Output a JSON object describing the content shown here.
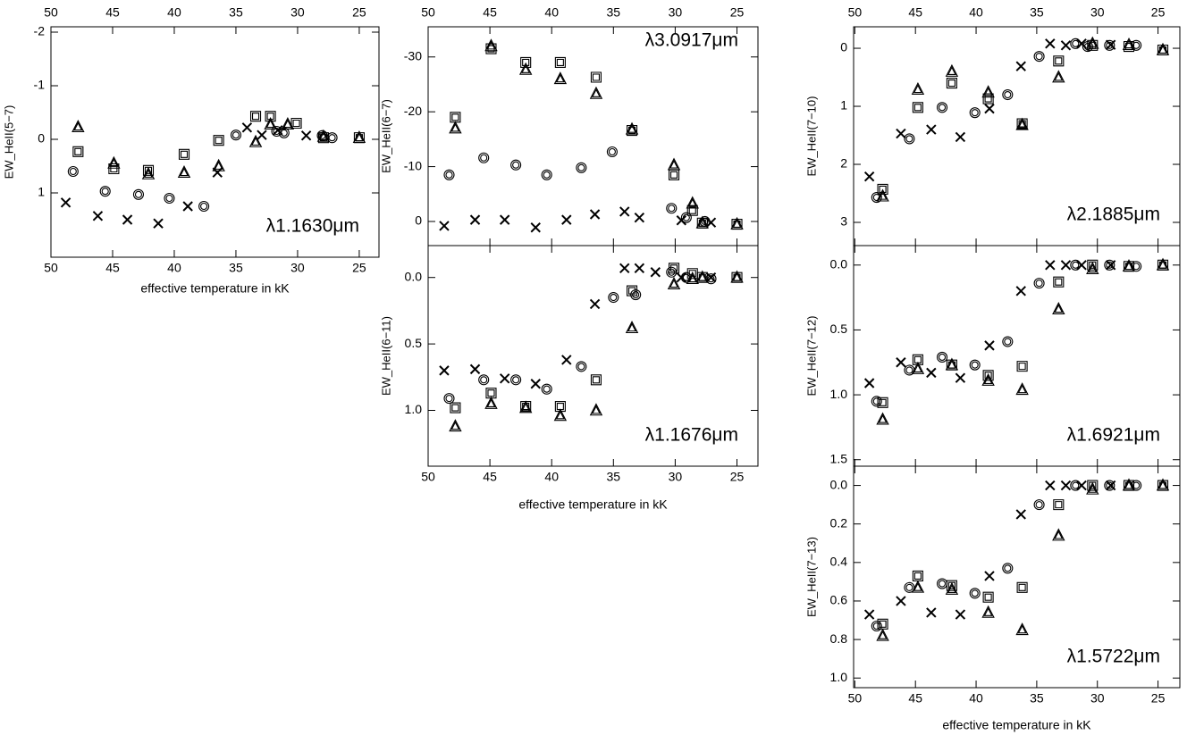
{
  "chart_data": [
    {
      "type": "scatter",
      "ylabel": "EW_HeII(5−7)",
      "annotation": "λ1.1630μm",
      "xlabel": "effective temperature in kK",
      "xlim": [
        50,
        23.4
      ],
      "ylim": [
        2.2,
        -2.1
      ],
      "xticks": [
        50,
        45,
        40,
        35,
        30,
        25
      ],
      "yticks": [
        -2,
        -1,
        0,
        1
      ],
      "color": "#000000",
      "series": [
        {
          "marker": "circle",
          "x": [
            48.2,
            45.6,
            42.9,
            40.4,
            37.6,
            35.0,
            31.7,
            31.1,
            28.0,
            27.2
          ],
          "values": [
            0.6,
            0.97,
            1.03,
            1.1,
            1.25,
            -0.08,
            -0.15,
            -0.12,
            -0.07,
            -0.03
          ]
        },
        {
          "marker": "square",
          "x": [
            47.8,
            44.9,
            42.1,
            39.2,
            36.4,
            33.4,
            32.2,
            30.1,
            27.9,
            25.0
          ],
          "values": [
            0.23,
            0.55,
            0.58,
            0.28,
            0.02,
            -0.43,
            -0.43,
            -0.3,
            -0.03,
            -0.03
          ]
        },
        {
          "marker": "triangle",
          "x": [
            47.8,
            44.9,
            42.1,
            39.2,
            36.4,
            33.4,
            32.2,
            30.8,
            27.9,
            25.0
          ],
          "values": [
            -0.23,
            0.45,
            0.65,
            0.62,
            0.5,
            0.05,
            -0.28,
            -0.28,
            -0.05,
            -0.03
          ]
        },
        {
          "marker": "cross",
          "x": [
            48.8,
            46.2,
            43.8,
            41.3,
            38.9,
            36.5,
            34.1,
            32.9,
            31.6,
            29.3
          ],
          "values": [
            1.18,
            1.43,
            1.5,
            1.57,
            1.25,
            0.62,
            -0.22,
            -0.08,
            -0.17,
            -0.07
          ]
        }
      ]
    },
    {
      "type": "scatter",
      "ylabel": "EW_HeII(6−7)",
      "annotation": "λ3.0917μm",
      "xlim": [
        50,
        23.3
      ],
      "ylim": [
        4.4,
        -35.5
      ],
      "xticks": [
        50,
        45,
        40,
        35,
        30,
        25
      ],
      "yticks": [
        -30,
        -20,
        -10,
        0
      ],
      "color": "#000000",
      "series": [
        {
          "marker": "circle",
          "x": [
            48.3,
            45.5,
            42.9,
            40.4,
            37.6,
            35.1,
            30.3,
            29.1,
            27.6
          ],
          "values": [
            -8.5,
            -11.6,
            -10.3,
            -8.5,
            -9.8,
            -12.7,
            -2.4,
            -0.7,
            0
          ]
        },
        {
          "marker": "square",
          "x": [
            47.8,
            44.9,
            42.1,
            39.3,
            36.4,
            33.5,
            30.1,
            28.6,
            27.8,
            25.0
          ],
          "values": [
            -19,
            -31.5,
            -29,
            -29,
            -26.3,
            -16.6,
            -8.5,
            -2,
            0.3,
            0.5
          ]
        },
        {
          "marker": "triangle",
          "x": [
            47.8,
            44.9,
            42.1,
            39.3,
            36.4,
            33.5,
            30.1,
            28.6,
            27.8,
            25.0
          ],
          "values": [
            -17,
            -32,
            -27.7,
            -26,
            -23.3,
            -16.8,
            -10.3,
            -3.3,
            0.3,
            0.5
          ]
        },
        {
          "marker": "cross",
          "x": [
            48.7,
            46.2,
            43.8,
            41.3,
            38.8,
            36.5,
            34.1,
            32.9,
            29.5,
            27.1
          ],
          "values": [
            0.8,
            -0.3,
            -0.3,
            1.1,
            -0.3,
            -1.3,
            -1.8,
            -0.7,
            -0.2,
            0.2
          ]
        }
      ]
    },
    {
      "type": "scatter",
      "ylabel": "EW_HeII(6−11)",
      "annotation": "λ1.1676μm",
      "xlabel": "effective temperature in kK",
      "xlim": [
        50,
        23.3
      ],
      "ylim": [
        1.42,
        -0.24
      ],
      "xticks": [
        50,
        45,
        40,
        35,
        30,
        25
      ],
      "yticks": [
        {
          "value": 0,
          "label": "0.0"
        },
        {
          "value": 0.5,
          "label": "0.5"
        },
        {
          "value": 1,
          "label": "1.0"
        }
      ],
      "color": "#000000",
      "series": [
        {
          "marker": "circle",
          "x": [
            48.3,
            45.5,
            42.9,
            40.4,
            37.6,
            35.0,
            33.2,
            30.3,
            29.1,
            27.1
          ],
          "values": [
            0.91,
            0.77,
            0.77,
            0.84,
            0.67,
            0.15,
            0.13,
            -0.04,
            0,
            0.01
          ]
        },
        {
          "marker": "square",
          "x": [
            47.8,
            44.9,
            42.1,
            39.3,
            36.4,
            33.5,
            30.1,
            28.6,
            27.8,
            25.0
          ],
          "values": [
            0.98,
            0.87,
            0.97,
            0.97,
            0.77,
            0.1,
            -0.07,
            -0.03,
            0,
            0
          ]
        },
        {
          "marker": "triangle",
          "x": [
            47.8,
            44.9,
            42.1,
            39.3,
            36.4,
            33.5,
            30.1,
            28.6,
            27.8,
            25.0
          ],
          "values": [
            1.12,
            0.95,
            0.98,
            1.04,
            1.0,
            0.38,
            0.05,
            0.01,
            0,
            0
          ]
        },
        {
          "marker": "cross",
          "x": [
            48.7,
            46.2,
            43.8,
            41.3,
            38.8,
            36.5,
            34.1,
            32.9,
            31.6,
            29.5,
            27.1
          ],
          "values": [
            0.7,
            0.69,
            0.76,
            0.8,
            0.62,
            0.2,
            -0.07,
            -0.07,
            -0.04,
            0,
            0
          ]
        }
      ]
    },
    {
      "type": "scatter",
      "ylabel": "EW_HeII(7−10)",
      "annotation": "λ2.1885μm",
      "xlim": [
        50.1,
        23.2
      ],
      "ylim": [
        3.4,
        -0.37
      ],
      "xticks": [
        50,
        45,
        40,
        35,
        30,
        25
      ],
      "yticks": [
        0,
        1,
        2,
        3
      ],
      "color": "#000000",
      "series": [
        {
          "marker": "circle",
          "x": [
            48.2,
            45.5,
            42.8,
            40.1,
            37.4,
            34.8,
            31.8,
            30.8,
            29.0,
            26.8
          ],
          "values": [
            2.57,
            1.56,
            1.02,
            1.11,
            0.8,
            0.14,
            -0.08,
            -0.03,
            -0.05,
            -0.05
          ]
        },
        {
          "marker": "square",
          "x": [
            47.7,
            44.8,
            42.0,
            39.0,
            36.2,
            33.2,
            30.4,
            27.4,
            24.6
          ],
          "values": [
            2.43,
            1.02,
            0.6,
            0.87,
            1.3,
            0.22,
            -0.05,
            -0.03,
            0.03
          ]
        },
        {
          "marker": "triangle",
          "x": [
            47.7,
            44.8,
            42.0,
            39.0,
            36.2,
            33.2,
            30.4,
            27.4,
            24.6
          ],
          "values": [
            2.55,
            0.71,
            0.4,
            0.76,
            1.32,
            0.5,
            -0.08,
            -0.06,
            0.03
          ]
        },
        {
          "marker": "cross",
          "x": [
            48.8,
            46.2,
            43.7,
            41.3,
            38.9,
            36.3,
            33.9,
            32.6,
            31.3,
            28.9
          ],
          "values": [
            2.21,
            1.47,
            1.4,
            1.53,
            1.04,
            0.31,
            -0.08,
            -0.05,
            -0.08,
            -0.06
          ]
        }
      ]
    },
    {
      "type": "scatter",
      "ylabel": "EW_HeII(7−12)",
      "annotation": "λ1.6921μm",
      "xlim": [
        50.1,
        23.2
      ],
      "ylim": [
        1.55,
        -0.15
      ],
      "xticks": [
        50,
        45,
        40,
        35,
        30,
        25
      ],
      "yticks": [
        {
          "value": 0,
          "label": "0.0"
        },
        {
          "value": 0.5,
          "label": "0.5"
        },
        {
          "value": 1,
          "label": "1.0"
        },
        {
          "value": 1.5,
          "label": "1.5"
        }
      ],
      "color": "#000000",
      "series": [
        {
          "marker": "circle",
          "x": [
            48.2,
            45.5,
            42.8,
            40.1,
            37.4,
            34.8,
            31.8,
            29.0,
            26.8
          ],
          "values": [
            1.05,
            0.81,
            0.71,
            0.77,
            0.59,
            0.14,
            0,
            0,
            0.01
          ]
        },
        {
          "marker": "square",
          "x": [
            47.7,
            44.8,
            42.0,
            39.0,
            36.2,
            33.2,
            30.4,
            27.4,
            24.6
          ],
          "values": [
            1.06,
            0.73,
            0.77,
            0.85,
            0.78,
            0.13,
            0,
            0.01,
            0
          ]
        },
        {
          "marker": "triangle",
          "x": [
            47.7,
            44.8,
            42.0,
            39.0,
            36.2,
            33.2,
            30.4,
            27.4,
            24.6
          ],
          "values": [
            1.19,
            0.8,
            0.77,
            0.89,
            0.96,
            0.34,
            0.03,
            0.01,
            0
          ]
        },
        {
          "marker": "cross",
          "x": [
            48.8,
            46.2,
            43.7,
            41.3,
            38.9,
            36.3,
            33.9,
            32.6,
            31.3,
            28.9
          ],
          "values": [
            0.91,
            0.75,
            0.83,
            0.87,
            0.62,
            0.2,
            0,
            0,
            0,
            0
          ]
        }
      ]
    },
    {
      "type": "scatter",
      "ylabel": "EW_HeII(7−13)",
      "annotation": "λ1.5722μm",
      "xlabel": "effective temperature in kK",
      "xlim": [
        50.1,
        23.2
      ],
      "ylim": [
        1.05,
        -0.1
      ],
      "xticks": [
        50,
        45,
        40,
        35,
        30,
        25
      ],
      "yticks": [
        {
          "value": 0,
          "label": "0.0"
        },
        {
          "value": 0.2,
          "label": "0.2"
        },
        {
          "value": 0.4,
          "label": "0.4"
        },
        {
          "value": 0.6,
          "label": "0.6"
        },
        {
          "value": 0.8,
          "label": "0.8"
        },
        {
          "value": 1,
          "label": "1.0"
        }
      ],
      "color": "#000000",
      "series": [
        {
          "marker": "circle",
          "x": [
            48.2,
            45.5,
            42.8,
            40.1,
            37.4,
            34.8,
            31.8,
            29.0,
            26.8
          ],
          "values": [
            0.73,
            0.53,
            0.51,
            0.56,
            0.43,
            0.1,
            0,
            0,
            0
          ]
        },
        {
          "marker": "square",
          "x": [
            47.7,
            44.8,
            42.0,
            39.0,
            36.2,
            33.2,
            30.4,
            27.4,
            24.6
          ],
          "values": [
            0.72,
            0.47,
            0.52,
            0.58,
            0.53,
            0.1,
            0,
            0,
            0
          ]
        },
        {
          "marker": "triangle",
          "x": [
            47.7,
            44.8,
            42.0,
            39.0,
            36.2,
            33.2,
            30.4,
            27.4,
            24.6
          ],
          "values": [
            0.78,
            0.53,
            0.54,
            0.66,
            0.75,
            0.26,
            0.02,
            0,
            0
          ]
        },
        {
          "marker": "cross",
          "x": [
            48.8,
            46.2,
            43.7,
            41.3,
            38.9,
            36.3,
            33.9,
            32.6,
            31.3,
            28.9
          ],
          "values": [
            0.67,
            0.6,
            0.66,
            0.67,
            0.47,
            0.15,
            0,
            0,
            0,
            0
          ]
        }
      ]
    }
  ]
}
